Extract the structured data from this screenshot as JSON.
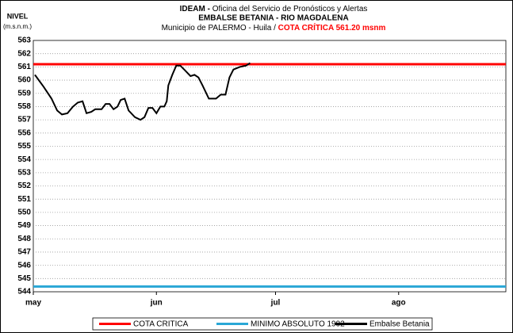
{
  "chart_data": {
    "type": "line",
    "title": {
      "bold": "IDEAM -",
      "rest": "Oficina del Servicio de Pronósticos y Alertas"
    },
    "subtitle": "EMBALSE BETANIA - RIO MAGDALENA",
    "subtitle2": {
      "text": "Municipio de PALERMO - Huila  /",
      "highlight": "COTA CRÍTICA 561.20 msnm"
    },
    "y_label": [
      "NIVEL",
      "(m.s.n.m.)"
    ],
    "ylim": [
      544,
      563
    ],
    "yticks": [
      544,
      545,
      546,
      547,
      548,
      549,
      550,
      551,
      552,
      553,
      554,
      555,
      556,
      557,
      558,
      559,
      560,
      561,
      562,
      563
    ],
    "xlim": [
      0,
      119
    ],
    "xticks": [
      {
        "value": 0,
        "label": "may"
      },
      {
        "value": 31,
        "label": "jun"
      },
      {
        "value": 61,
        "label": "jul"
      },
      {
        "value": 92,
        "label": "ago"
      }
    ],
    "grid": true,
    "reference_lines": [
      {
        "name": "COTA CRITICA",
        "value": 561.2,
        "color": "#ff0000"
      },
      {
        "name": "MINIMO ABSOLUTO 1992",
        "value": 544.4,
        "color": "#2aa7d6"
      }
    ],
    "series": [
      {
        "name": "Embalse Betania",
        "color": "#000000",
        "x": [
          0.4,
          2.6,
          4.6,
          6,
          7.2,
          8.6,
          10,
          11.2,
          12.4,
          13.4,
          14.6,
          15.6,
          17.2,
          18.2,
          19.2,
          20.2,
          21.2,
          22,
          23,
          24,
          25.6,
          27,
          28,
          29,
          30,
          31,
          32,
          33,
          33.6,
          34,
          35,
          36,
          37,
          38,
          39.6,
          40.6,
          41.6,
          42.6,
          44.2,
          46,
          47.2,
          48.4,
          49.4,
          50.4,
          52,
          53.6,
          54.6
        ],
        "values": [
          560.4,
          559.5,
          558.6,
          557.7,
          557.4,
          557.5,
          558.0,
          558.3,
          558.4,
          557.5,
          557.6,
          557.8,
          557.8,
          558.2,
          558.2,
          557.8,
          558.0,
          558.5,
          558.6,
          557.7,
          557.2,
          557.0,
          557.2,
          557.9,
          557.9,
          557.5,
          558.0,
          558.0,
          558.4,
          559.6,
          560.4,
          561.1,
          561.1,
          560.8,
          560.3,
          560.4,
          560.2,
          559.6,
          558.6,
          558.6,
          558.9,
          558.9,
          560.2,
          560.8,
          561.0,
          561.1,
          561.3
        ]
      }
    ]
  }
}
